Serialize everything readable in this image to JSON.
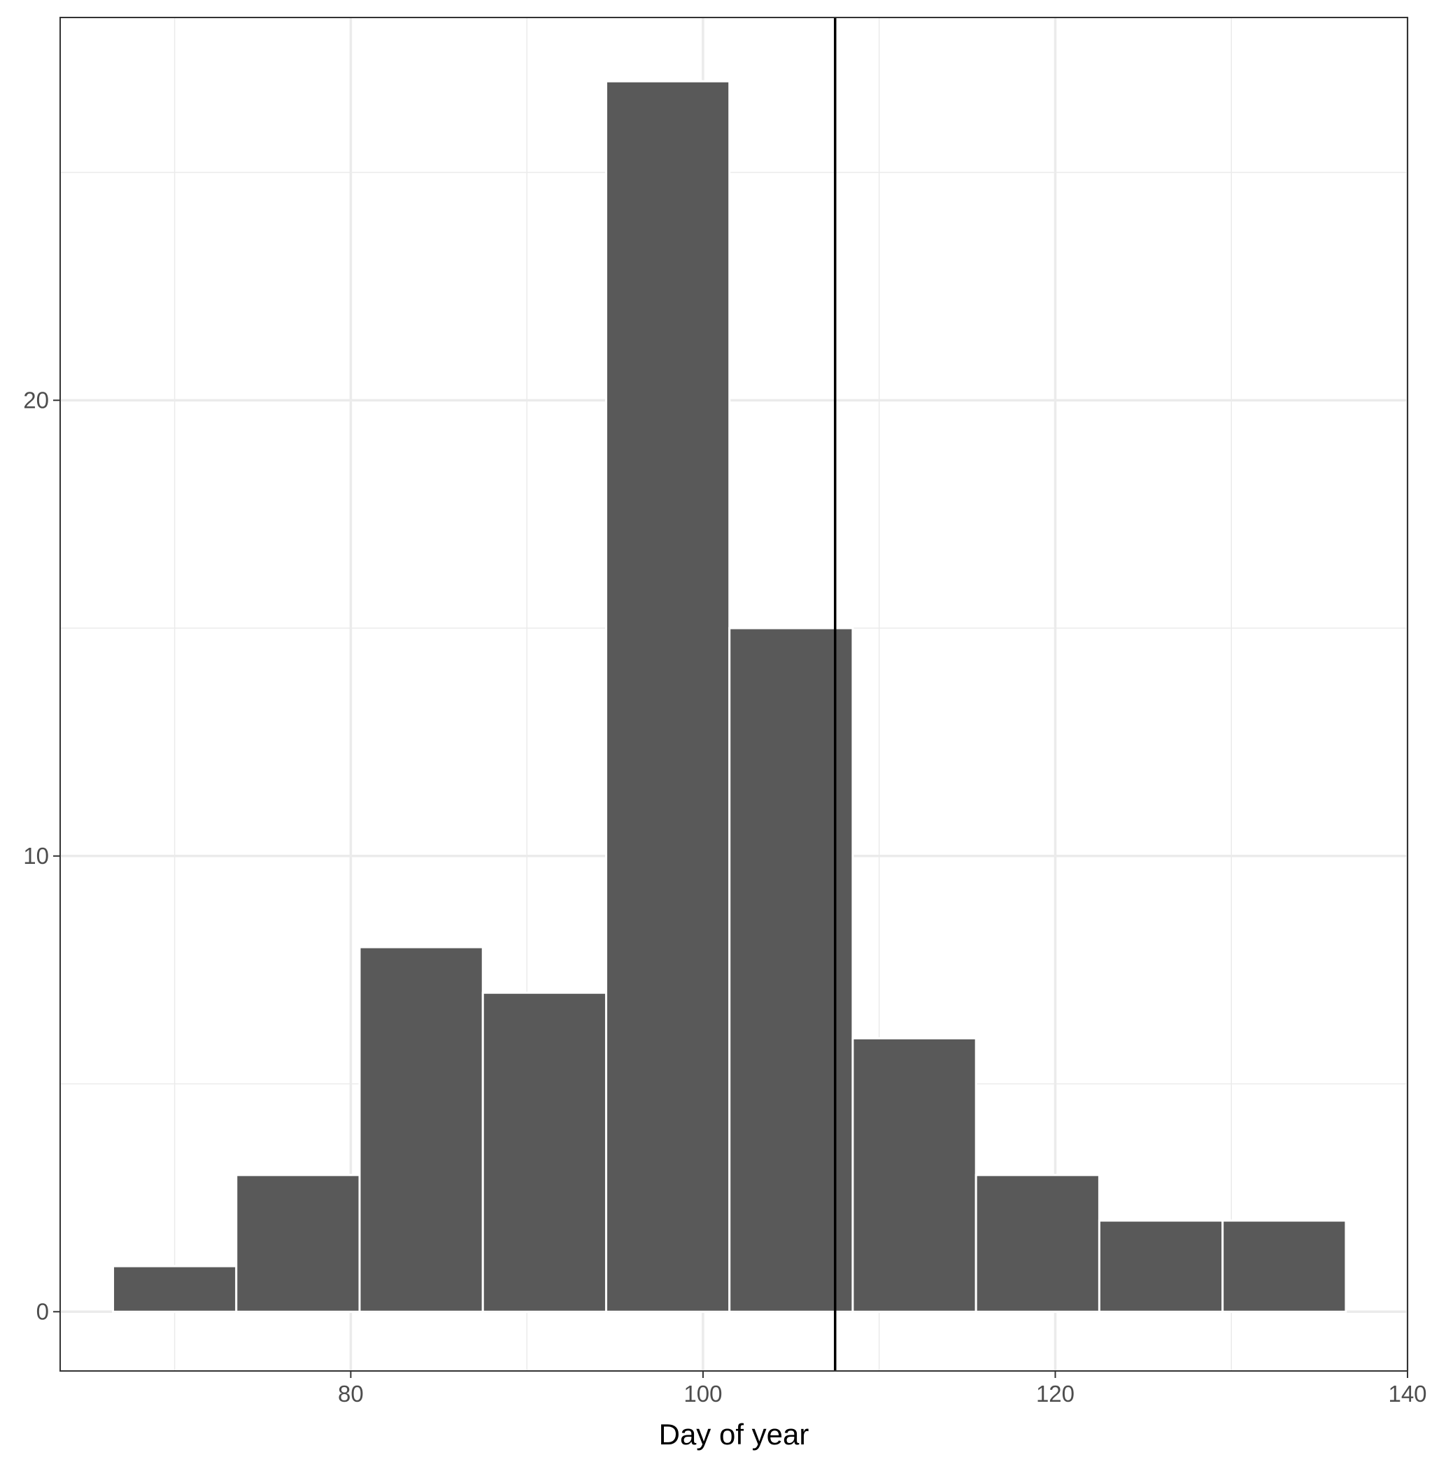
{
  "chart_data": {
    "type": "bar",
    "subtype": "histogram",
    "title": "",
    "xlabel": "Day of year",
    "ylabel": "",
    "xlim": [
      63.5,
      140
    ],
    "ylim": [
      -1.3,
      28.4
    ],
    "x_ticks": [
      80,
      100,
      120,
      140
    ],
    "y_ticks": [
      0,
      10,
      20
    ],
    "x_minor_gridlines": [
      70,
      90,
      110,
      130
    ],
    "y_minor_gridlines": [
      5,
      15,
      25
    ],
    "grid": true,
    "bin_width": 7,
    "bins": [
      {
        "start": 66.5,
        "end": 73.5,
        "count": 1
      },
      {
        "start": 73.5,
        "end": 80.5,
        "count": 3
      },
      {
        "start": 80.5,
        "end": 87.5,
        "count": 8
      },
      {
        "start": 87.5,
        "end": 94.5,
        "count": 7
      },
      {
        "start": 94.5,
        "end": 101.5,
        "count": 27
      },
      {
        "start": 101.5,
        "end": 108.5,
        "count": 15
      },
      {
        "start": 108.5,
        "end": 115.5,
        "count": 6
      },
      {
        "start": 115.5,
        "end": 122.5,
        "count": 3
      },
      {
        "start": 122.5,
        "end": 129.5,
        "count": 2
      },
      {
        "start": 129.5,
        "end": 136.5,
        "count": 2
      }
    ],
    "vline": {
      "x": 107.5
    },
    "colors": {
      "bar_fill": "#595959",
      "bar_outline": "#ffffff",
      "vline": "#000000",
      "grid": "#ebebeb",
      "panel_border": "#333333"
    }
  }
}
